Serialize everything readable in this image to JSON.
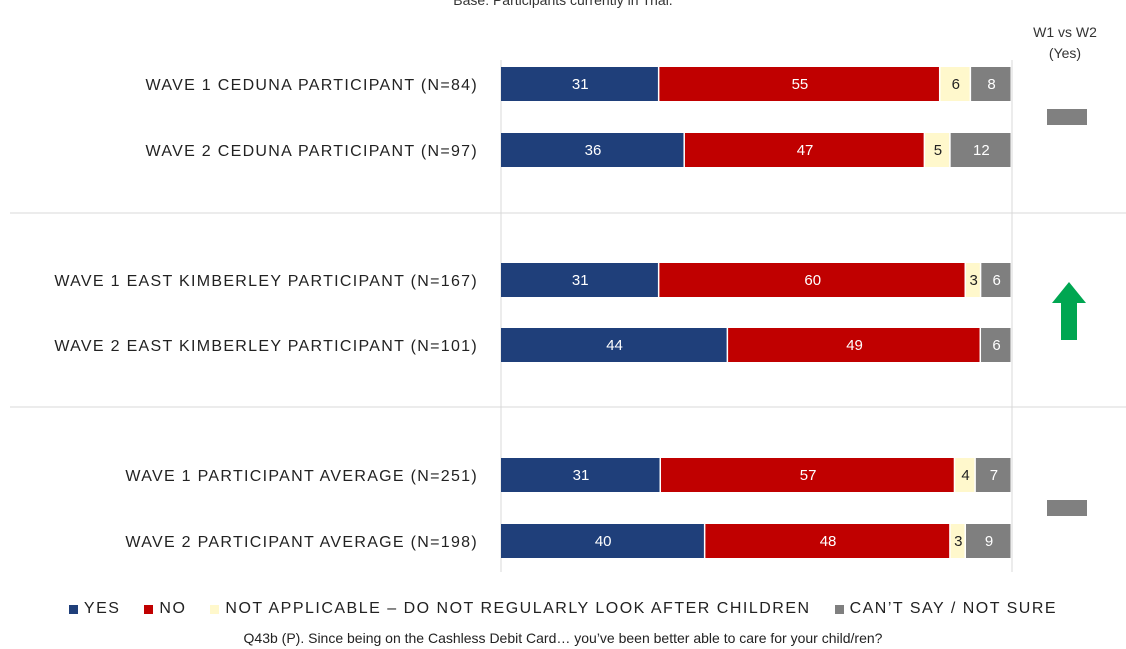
{
  "chart_data": {
    "type": "bar",
    "stacked": true,
    "horizontal": true,
    "subtitle": "Base: Participants currently in Trial.",
    "comparison_header": [
      "W1 vs W2",
      "(Yes)"
    ],
    "question": "Q43b (P). Since being on the Cashless Debit Card… you’ve been better able to care for your child/ren?",
    "categories": [
      "WAVE 1 CEDUNA PARTICIPANT (N=84)",
      "WAVE 2 CEDUNA PARTICIPANT (N=97)",
      "WAVE 1 EAST KIMBERLEY PARTICIPANT (N=167)",
      "WAVE 2 EAST KIMBERLEY PARTICIPANT (N=101)",
      "WAVE 1 PARTICIPANT AVERAGE (N=251)",
      "WAVE 2 PARTICIPANT AVERAGE (N=198)"
    ],
    "series": [
      {
        "name": "YES",
        "color": "#1f3f7a",
        "label_color": "#ffffff",
        "values": [
          31,
          36,
          31,
          44,
          31,
          40
        ]
      },
      {
        "name": "NO",
        "color": "#c00000",
        "label_color": "#ffffff",
        "values": [
          55,
          47,
          60,
          49,
          57,
          48
        ]
      },
      {
        "name": "NOT APPLICABLE – DO NOT REGULARLY LOOK AFTER CHILDREN",
        "color": "#fff8cc",
        "label_color": "#222222",
        "values": [
          6,
          5,
          3,
          null,
          4,
          3
        ]
      },
      {
        "name": "CAN’T SAY / NOT SURE",
        "color": "#7f7f7f",
        "label_color": "#ffffff",
        "values": [
          8,
          12,
          6,
          6,
          7,
          9
        ]
      }
    ],
    "xlim": [
      0,
      100
    ],
    "comparison": [
      {
        "group": "CEDUNA",
        "result": "no change",
        "icon": "grey-dash-icon"
      },
      {
        "group": "EAST KIMBERLEY",
        "result": "increase",
        "icon": "green-up-arrow-icon"
      },
      {
        "group": "PARTICIPANT AVERAGE",
        "result": "no change",
        "icon": "grey-dash-icon"
      }
    ]
  }
}
